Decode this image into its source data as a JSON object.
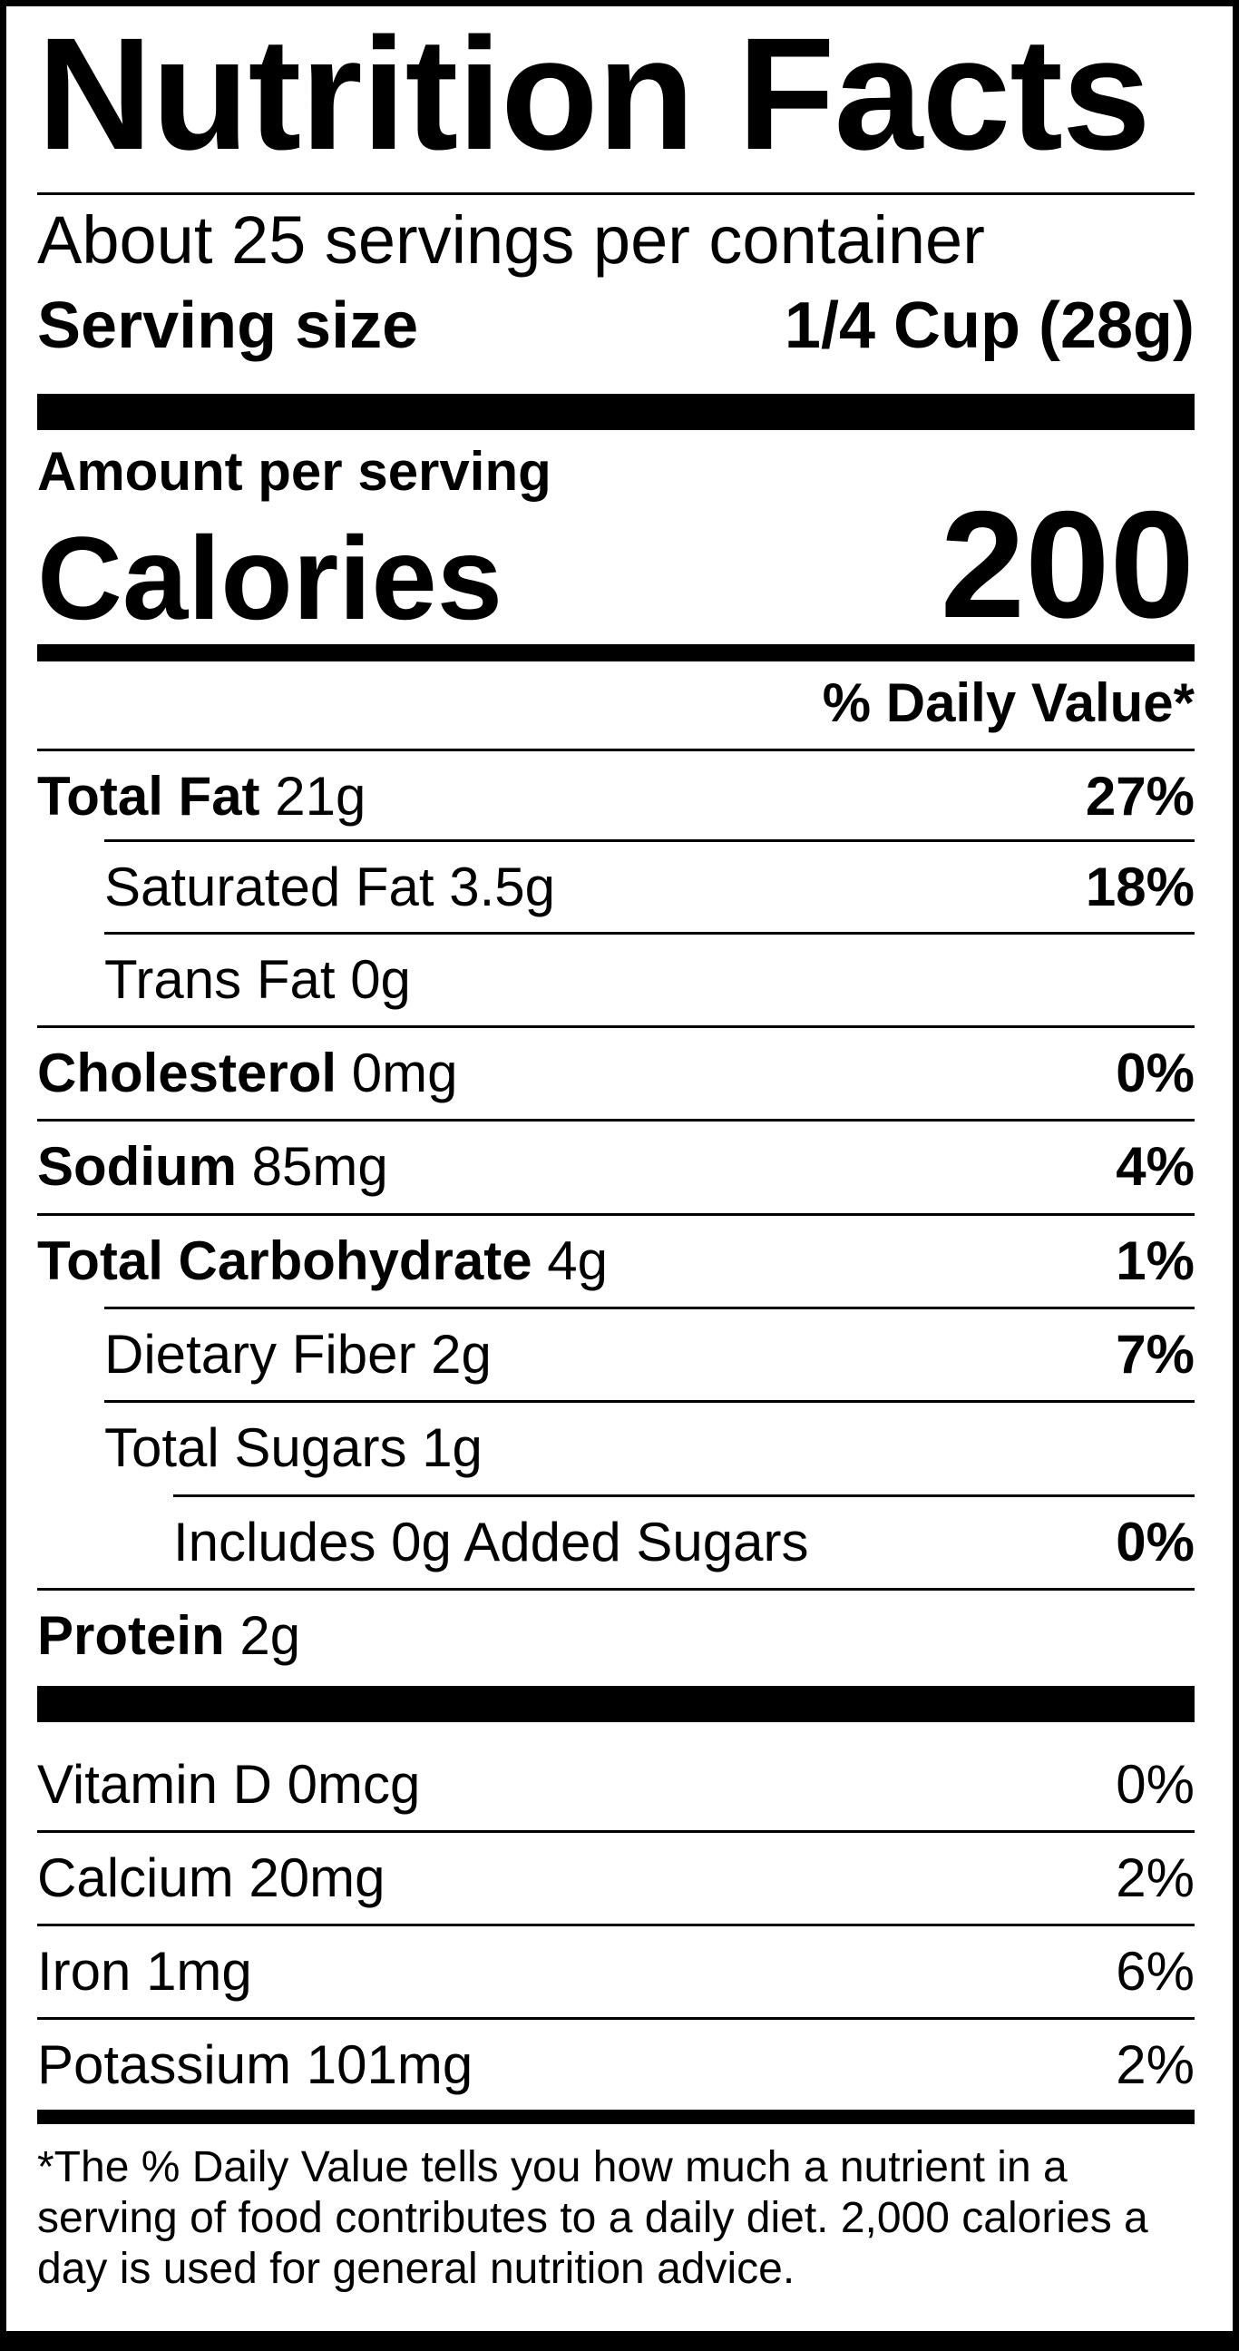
{
  "label": {
    "title": "Nutrition Facts",
    "servings_per_container": "About 25 servings per container",
    "serving_size_label": "Serving size",
    "serving_size_value": "1/4 Cup (28g)",
    "amount_per_serving": "Amount per serving",
    "calories_label": "Calories",
    "calories_value": "200",
    "daily_value_header": "% Daily Value*",
    "nutrients": [
      {
        "name": "Total Fat",
        "amount": "21g",
        "dv": "27%",
        "bold": true,
        "indent": 0
      },
      {
        "name": "Saturated Fat",
        "amount": "3.5g",
        "dv": "18%",
        "bold": false,
        "indent": 1
      },
      {
        "name": "Trans Fat",
        "amount": "0g",
        "dv": "",
        "bold": false,
        "indent": 1
      },
      {
        "name": "Cholesterol",
        "amount": "0mg",
        "dv": "0%",
        "bold": true,
        "indent": 0
      },
      {
        "name": "Sodium",
        "amount": "85mg",
        "dv": "4%",
        "bold": true,
        "indent": 0
      },
      {
        "name": "Total Carbohydrate",
        "amount": "4g",
        "dv": "1%",
        "bold": true,
        "indent": 0
      },
      {
        "name": "Dietary Fiber",
        "amount": "2g",
        "dv": "7%",
        "bold": false,
        "indent": 1
      },
      {
        "name": "Total Sugars",
        "amount": "1g",
        "dv": "",
        "bold": false,
        "indent": 1
      },
      {
        "name": "Includes 0g Added Sugars",
        "amount": "",
        "dv": "0%",
        "bold": false,
        "indent": 2
      },
      {
        "name": "Protein",
        "amount": "2g",
        "dv": "",
        "bold": true,
        "indent": 0
      }
    ],
    "vitamins": [
      {
        "name": "Vitamin D",
        "amount": "0mcg",
        "dv": "0%"
      },
      {
        "name": "Calcium",
        "amount": "20mg",
        "dv": "2%"
      },
      {
        "name": "Iron",
        "amount": "1mg",
        "dv": "6%"
      },
      {
        "name": "Potassium",
        "amount": "101mg",
        "dv": "2%"
      }
    ],
    "footnote": "*The % Daily Value tells you how much a nutrient in a serving of food contributes to a daily diet. 2,000 calories a day is used for general nutrition advice."
  }
}
